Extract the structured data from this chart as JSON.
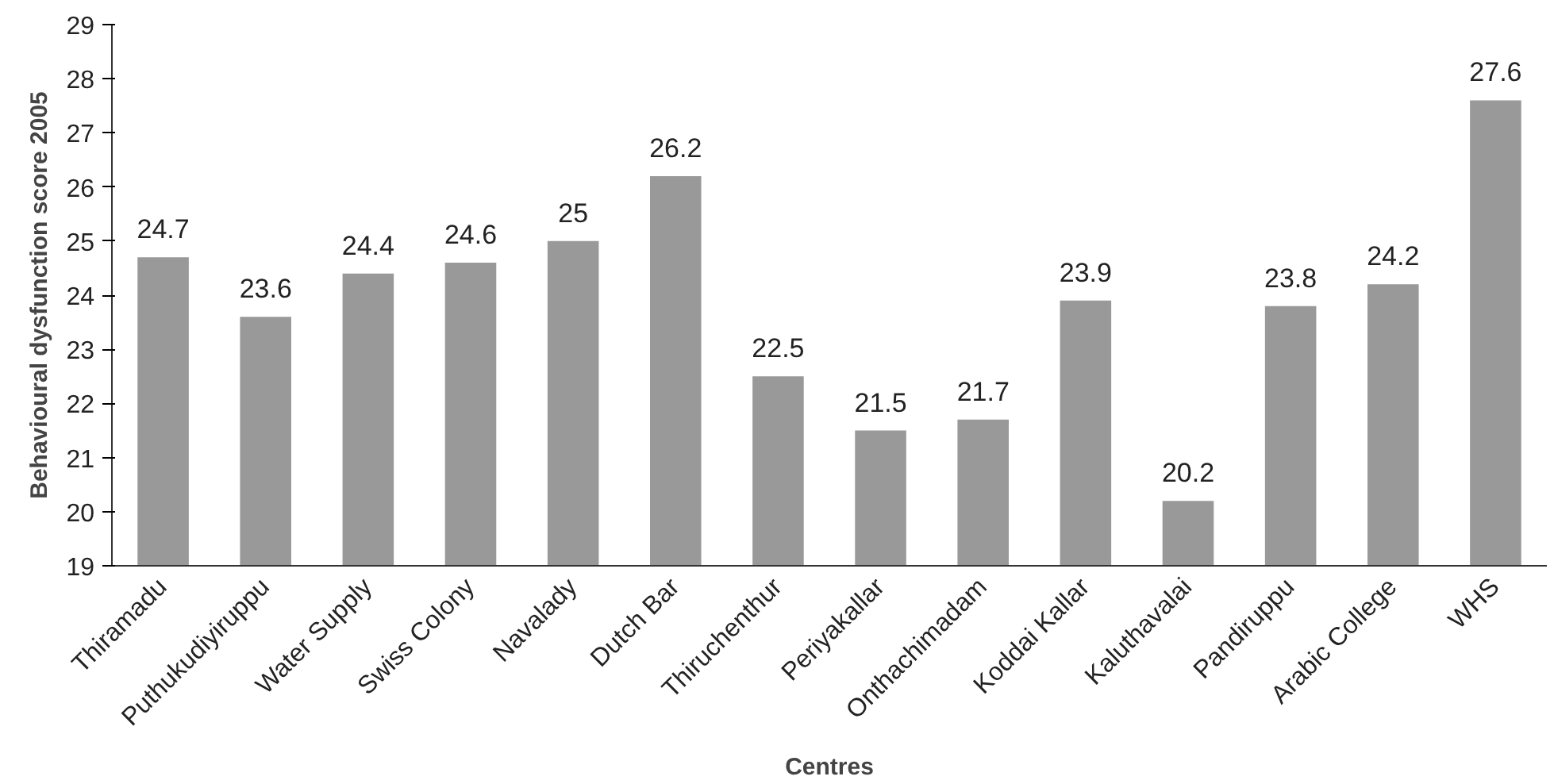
{
  "chart_data": {
    "type": "bar",
    "xlabel": "Centres",
    "ylabel": "Behavioural dysfunction score 2005",
    "categories": [
      "Thiramadu",
      "Puthukudiyiruppu",
      "Water Supply",
      "Swiss Colony",
      "Navalady",
      "Dutch Bar",
      "Thiruchenthur",
      "Periyakallar",
      "Onthachimadam",
      "Koddai Kallar",
      "Kaluthavalai",
      "Pandiruppu",
      "Arabic College",
      "WHS"
    ],
    "values": [
      24.7,
      23.6,
      24.4,
      24.6,
      25,
      26.2,
      22.5,
      21.5,
      21.7,
      23.9,
      20.2,
      23.8,
      24.2,
      27.6
    ],
    "color": "#999999",
    "ylim": [
      19,
      29
    ],
    "yticks": [
      19,
      20,
      21,
      22,
      23,
      24,
      25,
      26,
      27,
      28,
      29
    ],
    "data_labels": true,
    "grid": false
  }
}
